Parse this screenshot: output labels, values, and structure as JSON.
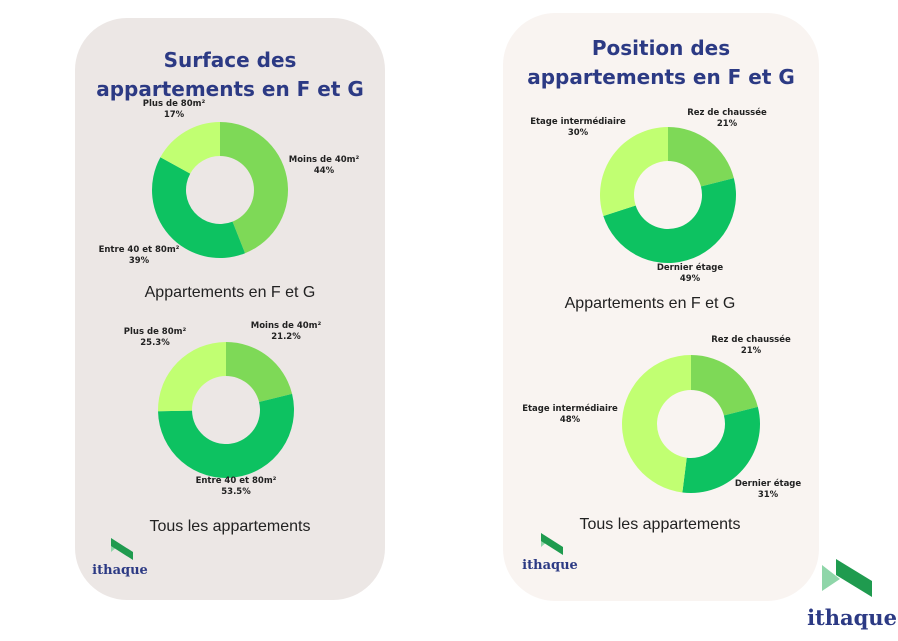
{
  "brand": {
    "name": "ithaque",
    "primary": "#2c3a84",
    "accent": "#1f9b4f"
  },
  "left_card": {
    "title_line1": "Surface des",
    "title_line2": "appartements en F et G",
    "top_caption": "Appartements en F et G",
    "bottom_caption": "Tous les appartements"
  },
  "right_card": {
    "title_line1": "Position des",
    "title_line2": "appartements en F et G",
    "top_caption": "Appartements en F et G",
    "bottom_caption": "Tous les appartements"
  },
  "chart_data": [
    {
      "type": "pie",
      "variant": "donut",
      "group": "surface-fg",
      "slices": [
        {
          "label": "Moins de 40m²",
          "value": 44,
          "value_label": "44%",
          "color": "#7ed957"
        },
        {
          "label": "Entre 40 et 80m²",
          "value": 39,
          "value_label": "39%",
          "color": "#0dc261"
        },
        {
          "label": "Plus de 80m²",
          "value": 17,
          "value_label": "17%",
          "color": "#c1ff72"
        }
      ]
    },
    {
      "type": "pie",
      "variant": "donut",
      "group": "surface-all",
      "slices": [
        {
          "label": "Moins de 40m²",
          "value": 21.2,
          "value_label": "21.2%",
          "color": "#7ed957"
        },
        {
          "label": "Entre 40 et 80m²",
          "value": 53.5,
          "value_label": "53.5%",
          "color": "#0dc261"
        },
        {
          "label": "Plus de 80m²",
          "value": 25.3,
          "value_label": "25.3%",
          "color": "#c1ff72"
        }
      ]
    },
    {
      "type": "pie",
      "variant": "donut",
      "group": "position-fg",
      "slices": [
        {
          "label": "Rez de chaussée",
          "value": 21,
          "value_label": "21%",
          "color": "#7ed957"
        },
        {
          "label": "Dernier étage",
          "value": 49,
          "value_label": "49%",
          "color": "#0dc261"
        },
        {
          "label": "Etage intermédiaire",
          "value": 30,
          "value_label": "30%",
          "color": "#c1ff72"
        }
      ]
    },
    {
      "type": "pie",
      "variant": "donut",
      "group": "position-all",
      "slices": [
        {
          "label": "Rez de chaussée",
          "value": 21,
          "value_label": "21%",
          "color": "#7ed957"
        },
        {
          "label": "Dernier étage",
          "value": 31,
          "value_label": "31%",
          "color": "#0dc261"
        },
        {
          "label": "Etage intermédiaire",
          "value": 48,
          "value_label": "48%",
          "color": "#c1ff72"
        }
      ]
    }
  ]
}
